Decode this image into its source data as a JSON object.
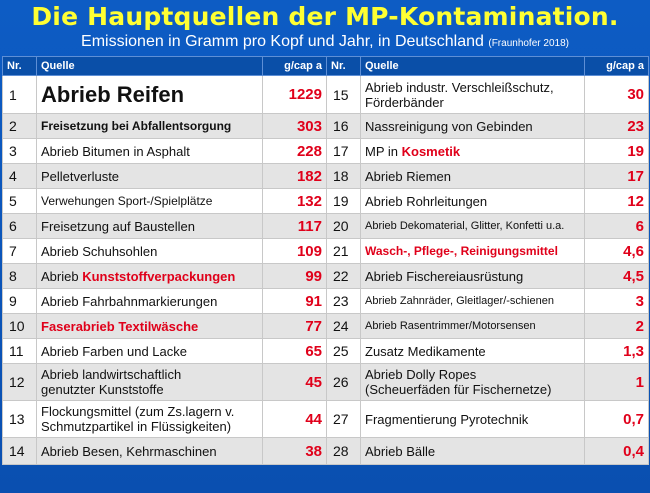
{
  "title": "Die Hauptquellen der MP-Kontamination.",
  "subtitle": "Emissionen in Gramm pro Kopf und Jahr, in Deutschland",
  "source": "(Fraunhofer 2018)",
  "headers": {
    "nr": "Nr.",
    "quelle": "Quelle",
    "value": "g/cap a"
  },
  "chart_data": {
    "type": "table",
    "title": "Die Hauptquellen der MP-Kontamination.",
    "columns": [
      "Nr.",
      "Quelle",
      "g/cap a"
    ],
    "rows": [
      {
        "nr": "1",
        "quelle": "Abrieb Reifen",
        "value": "1229"
      },
      {
        "nr": "2",
        "quelle": "Freisetzung bei Abfallentsorgung",
        "value": "303"
      },
      {
        "nr": "3",
        "quelle": "Abrieb Bitumen in Asphalt",
        "value": "228"
      },
      {
        "nr": "4",
        "quelle": "Pelletverluste",
        "value": "182"
      },
      {
        "nr": "5",
        "quelle": "Verwehungen Sport-/Spielplätze",
        "value": "132"
      },
      {
        "nr": "6",
        "quelle": "Freisetzung auf Baustellen",
        "value": "117"
      },
      {
        "nr": "7",
        "quelle": "Abrieb Schuhsohlen",
        "value": "109"
      },
      {
        "nr": "8",
        "quelle": "Abrieb Kunststoffverpackungen",
        "value": "99"
      },
      {
        "nr": "9",
        "quelle": "Abrieb Fahrbahnmarkierungen",
        "value": "91"
      },
      {
        "nr": "10",
        "quelle": "Faserabrieb Textilwäsche",
        "value": "77"
      },
      {
        "nr": "11",
        "quelle": "Abrieb Farben und Lacke",
        "value": "65"
      },
      {
        "nr": "12",
        "quelle": "Abrieb landwirtschaftlich genutzter Kunststoffe",
        "value": "45"
      },
      {
        "nr": "13",
        "quelle": "Flockungsmittel (zum Zs.lagern v. Schmutzpartikel in Flüssigkeiten)",
        "value": "44"
      },
      {
        "nr": "14",
        "quelle": "Abrieb Besen, Kehrmaschinen",
        "value": "38"
      },
      {
        "nr": "15",
        "quelle": "Abrieb industr. Verschleißschutz, Förderbänder",
        "value": "30"
      },
      {
        "nr": "16",
        "quelle": "Nassreinigung von Gebinden",
        "value": "23"
      },
      {
        "nr": "17",
        "quelle": "MP in Kosmetik",
        "value": "19"
      },
      {
        "nr": "18",
        "quelle": "Abrieb Riemen",
        "value": "17"
      },
      {
        "nr": "19",
        "quelle": "Abrieb Rohrleitungen",
        "value": "12"
      },
      {
        "nr": "20",
        "quelle": "Abrieb Dekomaterial, Glitter, Konfetti u.a.",
        "value": "6"
      },
      {
        "nr": "21",
        "quelle": "Wasch-, Pflege-, Reinigungsmittel",
        "value": "4,6"
      },
      {
        "nr": "22",
        "quelle": "Abrieb Fischereiausrüstung",
        "value": "4,5"
      },
      {
        "nr": "23",
        "quelle": "Abrieb Zahnräder, Gleitlager/-schienen",
        "value": "3"
      },
      {
        "nr": "24",
        "quelle": "Abrieb Rasentrimmer/Motorsensen",
        "value": "2"
      },
      {
        "nr": "25",
        "quelle": "Zusatz Medikamente",
        "value": "1,3"
      },
      {
        "nr": "26",
        "quelle": "Abrieb Dolly Ropes (Scheuerfäden für Fischernetze)",
        "value": "1"
      },
      {
        "nr": "27",
        "quelle": "Fragmentierung Pyrotechnik",
        "value": "0,7"
      },
      {
        "nr": "28",
        "quelle": "Abrieb Bälle",
        "value": "0,4"
      }
    ]
  },
  "labels": {
    "r8_prefix": "Abrieb ",
    "r8_hl": "Kunststoffverpackungen",
    "r12_line1": "Abrieb landwirtschaftlich",
    "r12_line2": "genutzter Kunststoffe",
    "r13_line1": "Flockungsmittel (zum Zs.lagern v.",
    "r13_line2": "Schmutzpartikel in Flüssigkeiten)",
    "r15_line1": "Abrieb industr. Verschleißschutz,",
    "r15_line2": "Förderbänder",
    "r17_prefix": "MP in ",
    "r17_hl": "Kosmetik",
    "r26_line1": "Abrieb Dolly Ropes",
    "r26_line2": "(Scheuerfäden für Fischernetze)"
  },
  "colors": {
    "background": "#0d5cc4",
    "title": "#ffff33",
    "value": "#e0001a",
    "row_alt": "#e4e4e4"
  }
}
